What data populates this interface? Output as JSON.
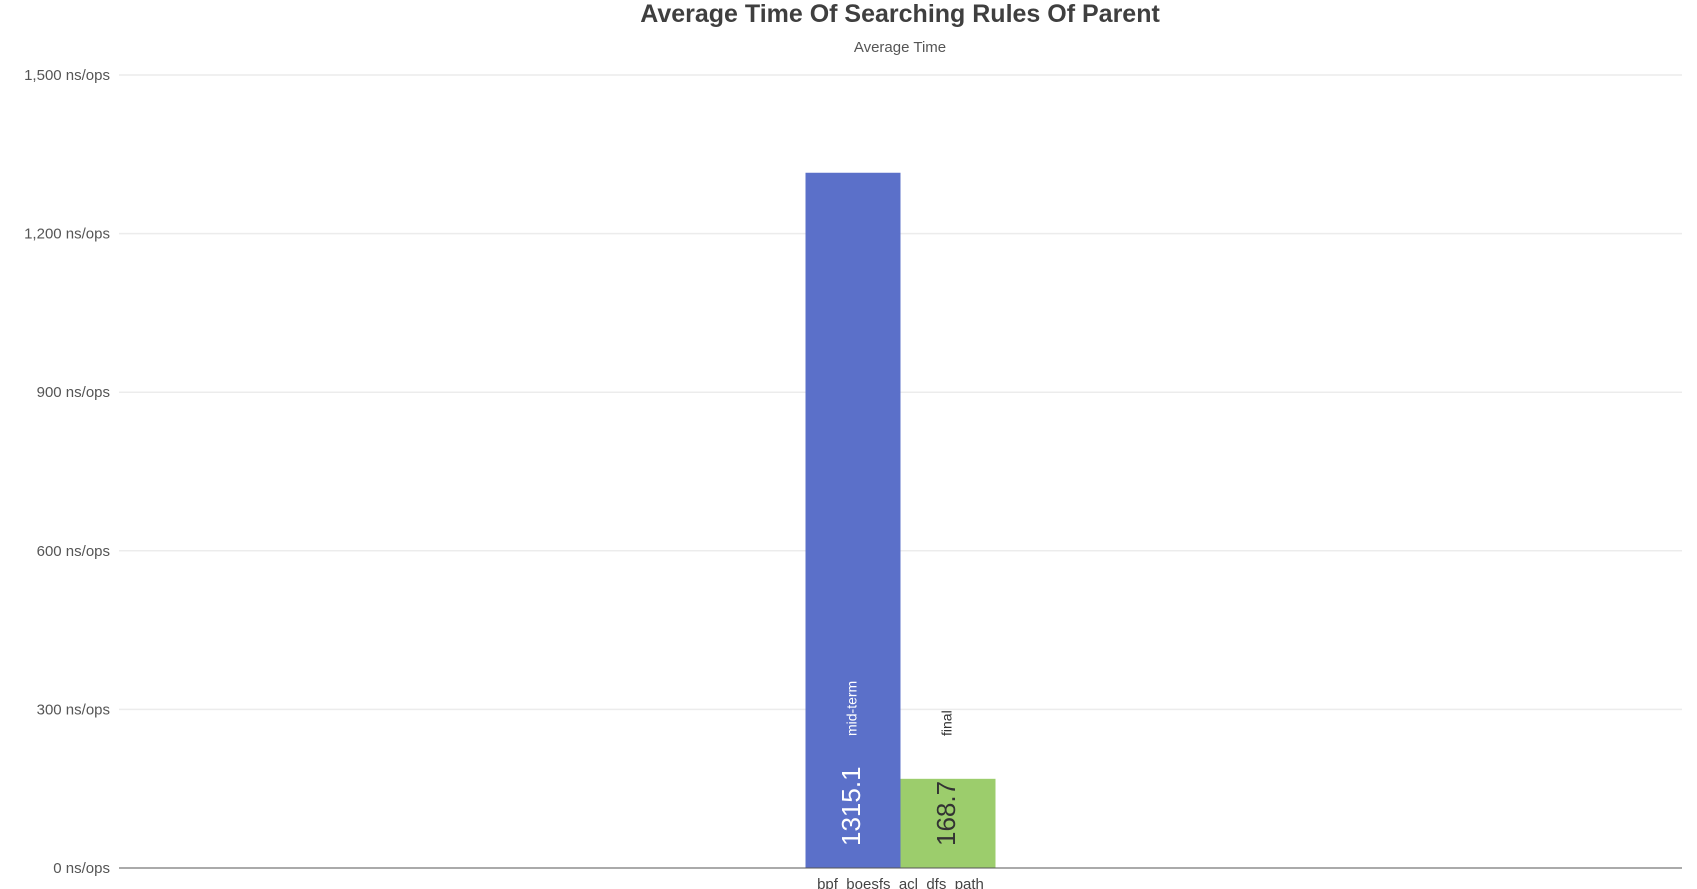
{
  "chart_data": {
    "type": "bar",
    "title": "Average Time Of Searching Rules Of Parent",
    "subtitle": "Average Time",
    "xlabel": "",
    "ylabel": "",
    "ylim": [
      0,
      1500
    ],
    "y_ticks": [
      0,
      300,
      600,
      900,
      1200,
      1500
    ],
    "y_tick_labels": [
      "0 ns/ops",
      "300 ns/ops",
      "600 ns/ops",
      "900 ns/ops",
      "1,200 ns/ops",
      "1,500 ns/ops"
    ],
    "categories": [
      "bpf_boesfs_acl_dfs_path"
    ],
    "series": [
      {
        "name": "mid-term",
        "values": [
          1315.1
        ],
        "value_labels": [
          "1315.1"
        ],
        "color": "#5b70c9",
        "label_color": "#ffffff"
      },
      {
        "name": "final",
        "values": [
          168.7
        ],
        "value_labels": [
          "168.7"
        ],
        "color": "#9ccd6c",
        "label_color": "#333333"
      }
    ],
    "grid": true,
    "legend": "none"
  }
}
